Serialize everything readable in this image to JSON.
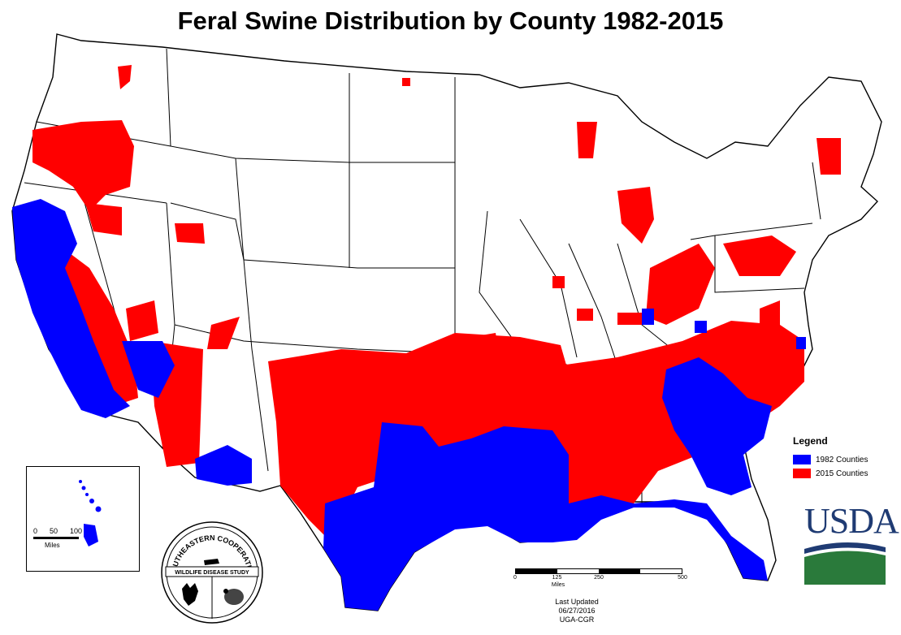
{
  "title": "Feral Swine Distribution by County 1982-2015",
  "legend": {
    "title": "Legend",
    "items": [
      {
        "label": "1982 Counties",
        "color": "#0000ff"
      },
      {
        "label": "2015 Counties",
        "color": "#ff0000"
      }
    ]
  },
  "colors": {
    "county_1982": "#0000ff",
    "county_2015": "#ff0000",
    "background": "#ffffff",
    "border": "#000000"
  },
  "hawaii_inset": {
    "ticks": [
      "0",
      "50",
      "100"
    ],
    "unit": "Miles"
  },
  "scale_bar": {
    "ticks": [
      "0",
      "125",
      "250",
      "500"
    ],
    "unit": "Miles"
  },
  "updated": {
    "line1": "Last Updated 06/27/2016",
    "line2": "UGA-CGR"
  },
  "seal": {
    "top_text": "SOUTHEASTERN COOPERATIVE",
    "band_text": "WILDLIFE DISEASE STUDY",
    "icons": [
      "deer-icon",
      "turkey-icon",
      "pig-icon"
    ]
  },
  "logo": {
    "text": "USDA"
  }
}
